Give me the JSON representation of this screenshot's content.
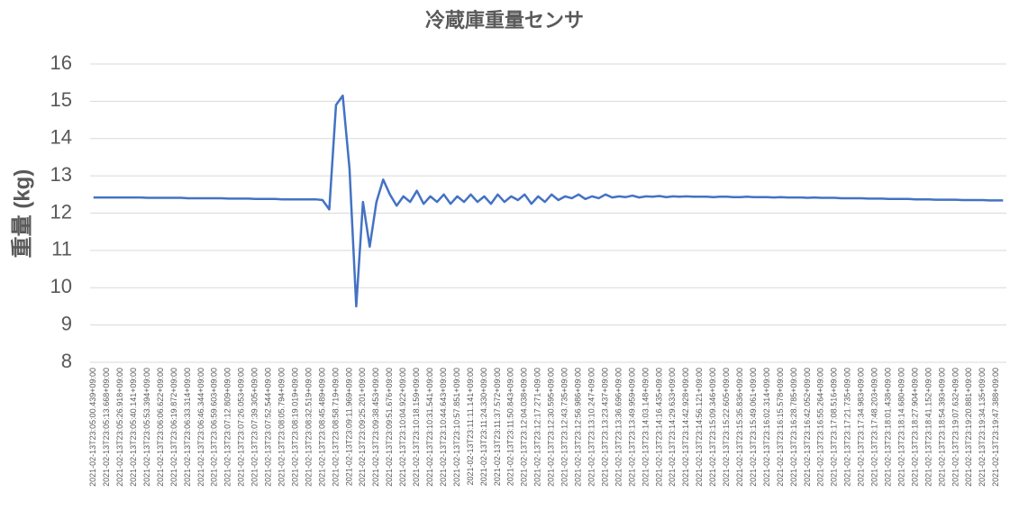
{
  "chart_data": {
    "type": "line",
    "title": "冷蔵庫重量センサ",
    "y_label": "重量 (kg)",
    "color": "#4472c4",
    "grid": true,
    "ylim": [
      8,
      16
    ],
    "yticks": [
      8,
      9,
      10,
      11,
      12,
      13,
      14,
      15,
      16
    ],
    "categories": [
      "2021-02-13T23:05:00.439+09:00",
      null,
      "2021-02-13T23:05:13.668+09:00",
      null,
      "2021-02-13T23:05:26.918+09:00",
      null,
      "2021-02-13T23:05:40.141+09:00",
      null,
      "2021-02-13T23:05:53.394+09:00",
      null,
      "2021-02-13T23:06:06.622+09:00",
      null,
      "2021-02-13T23:06:19.872+09:00",
      null,
      "2021-02-13T23:06:33.314+09:00",
      null,
      "2021-02-13T23:06:46.344+09:00",
      null,
      "2021-02-13T23:06:59.603+09:00",
      null,
      "2021-02-13T23:07:12.809+09:00",
      null,
      "2021-02-13T23:07:26.053+09:00",
      null,
      "2021-02-13T23:07:39.305+09:00",
      null,
      "2021-02-13T23:07:52.544+09:00",
      null,
      "2021-02-13T23:08:05.794+09:00",
      null,
      "2021-02-13T23:08:19.019+09:00",
      null,
      "2021-02-13T23:08:32.519+09:00",
      null,
      "2021-02-13T23:08:45.489+09:00",
      null,
      "2021-02-13T23:08:58.719+09:00",
      null,
      "2021-02-13T23:09:11.969+09:00",
      null,
      "2021-02-13T23:09:25.201+09:00",
      null,
      "2021-02-13T23:09:38.453+09:00",
      null,
      "2021-02-13T23:09:51.676+09:00",
      null,
      "2021-02-13T23:10:04.922+09:00",
      null,
      "2021-02-13T23:10:18.159+09:00",
      null,
      "2021-02-13T23:10:31.541+09:00",
      null,
      "2021-02-13T23:10:44.643+09:00",
      null,
      "2021-02-13T23:10:57.851+09:00",
      null,
      "2021-02-13T23:11:11.141+09:00",
      null,
      "2021-02-13T23:11:24.330+09:00",
      null,
      "2021-02-13T23:11:37.572+09:00",
      null,
      "2021-02-13T23:11:50.843+09:00",
      null,
      "2021-02-13T23:12:04.038+09:00",
      null,
      "2021-02-13T23:12:17.271+09:00",
      null,
      "2021-02-13T23:12:30.595+09:00",
      null,
      "2021-02-13T23:12:43.735+09:00",
      null,
      "2021-02-13T23:12:56.986+09:00",
      null,
      "2021-02-13T23:13:10.247+09:00",
      null,
      "2021-02-13T23:13:23.437+09:00",
      null,
      "2021-02-13T23:13:36.696+09:00",
      null,
      "2021-02-13T23:13:49.959+09:00",
      null,
      "2021-02-13T23:14:03.148+09:00",
      null,
      "2021-02-13T23:14:16.435+09:00",
      null,
      "2021-02-13T23:14:29.633+09:00",
      null,
      "2021-02-13T23:14:42.928+09:00",
      null,
      "2021-02-13T23:14:56.121+09:00",
      null,
      "2021-02-13T23:15:09.346+09:00",
      null,
      "2021-02-13T23:15:22.605+09:00",
      null,
      "2021-02-13T23:15:35.836+09:00",
      null,
      "2021-02-13T23:15:49.061+09:00",
      null,
      "2021-02-13T23:16:02.314+09:00",
      null,
      "2021-02-13T23:16:15.578+09:00",
      null,
      "2021-02-13T23:16:28.785+09:00",
      null,
      "2021-02-13T23:16:42.052+09:00",
      null,
      "2021-02-13T23:16:55.264+09:00",
      null,
      "2021-02-13T23:17:08.516+09:00",
      null,
      "2021-02-13T23:17:21.735+09:00",
      null,
      "2021-02-13T23:17:34.983+09:00",
      null,
      "2021-02-13T23:17:48.203+09:00",
      null,
      "2021-02-13T23:18:01.438+09:00",
      null,
      "2021-02-13T23:18:14.680+09:00",
      null,
      "2021-02-13T23:18:27.904+09:00",
      null,
      "2021-02-13T23:18:41.152+09:00",
      null,
      "2021-02-13T23:18:54.393+09:00",
      null,
      "2021-02-13T23:19:07.632+09:00",
      null,
      "2021-02-13T23:19:20.881+09:00",
      null,
      "2021-02-13T23:19:34.135+09:00",
      null,
      "2021-02-13T23:19:47.388+09:00",
      null
    ],
    "values": [
      12.42,
      12.42,
      12.42,
      12.42,
      12.42,
      12.42,
      12.42,
      12.42,
      12.41,
      12.41,
      12.41,
      12.41,
      12.41,
      12.41,
      12.4,
      12.4,
      12.4,
      12.4,
      12.4,
      12.4,
      12.39,
      12.39,
      12.39,
      12.39,
      12.38,
      12.38,
      12.38,
      12.38,
      12.37,
      12.37,
      12.37,
      12.37,
      12.37,
      12.37,
      12.35,
      12.1,
      14.9,
      15.15,
      13.2,
      9.5,
      12.3,
      11.1,
      12.3,
      12.9,
      12.5,
      12.2,
      12.45,
      12.3,
      12.6,
      12.25,
      12.45,
      12.3,
      12.5,
      12.25,
      12.45,
      12.3,
      12.5,
      12.3,
      12.45,
      12.25,
      12.5,
      12.3,
      12.45,
      12.35,
      12.5,
      12.25,
      12.45,
      12.3,
      12.5,
      12.35,
      12.45,
      12.4,
      12.5,
      12.38,
      12.45,
      12.4,
      12.5,
      12.42,
      12.45,
      12.43,
      12.47,
      12.42,
      12.45,
      12.44,
      12.46,
      12.43,
      12.45,
      12.44,
      12.45,
      12.44,
      12.44,
      12.44,
      12.43,
      12.44,
      12.44,
      12.43,
      12.43,
      12.44,
      12.43,
      12.43,
      12.43,
      12.42,
      12.43,
      12.42,
      12.42,
      12.42,
      12.41,
      12.42,
      12.41,
      12.41,
      12.41,
      12.4,
      12.4,
      12.4,
      12.4,
      12.39,
      12.39,
      12.39,
      12.38,
      12.38,
      12.38,
      12.38,
      12.37,
      12.37,
      12.37,
      12.36,
      12.36,
      12.36,
      12.36,
      12.35,
      12.35,
      12.35,
      12.35,
      12.34,
      12.34,
      12.34
    ]
  }
}
